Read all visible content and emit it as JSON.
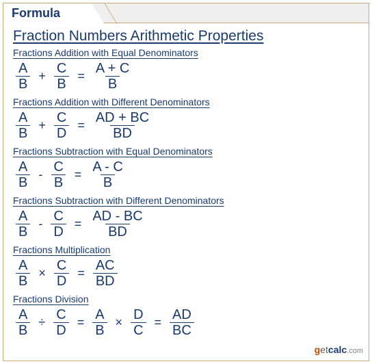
{
  "colors": {
    "border": "#c9a97a",
    "text_primary": "#1a3a6e",
    "tab_bg": "#f0efed",
    "white": "#ffffff"
  },
  "tab_label": "Formula",
  "main_title": "Fraction Numbers Arithmetic Properties",
  "sections": [
    {
      "title": "Fractions Addition with Equal Denominators",
      "f1n": "A",
      "f1d": "B",
      "op1": "+",
      "f2n": "C",
      "f2d": "B",
      "eq1": "=",
      "f3n": "A + C",
      "f3d": "B"
    },
    {
      "title": "Fractions Addition with Different Denominators",
      "f1n": "A",
      "f1d": "B",
      "op1": "+",
      "f2n": "C",
      "f2d": "D",
      "eq1": "=",
      "f3n": "AD + BC",
      "f3d": "BD"
    },
    {
      "title": "Fractions Subtraction with Equal Denominators",
      "f1n": "A",
      "f1d": "B",
      "op1": "-",
      "f2n": "C",
      "f2d": "B",
      "eq1": "=",
      "f3n": "A - C",
      "f3d": "B"
    },
    {
      "title": "Fractions Subtraction with Different Denominators",
      "f1n": "A",
      "f1d": "B",
      "op1": "-",
      "f2n": "C",
      "f2d": "D",
      "eq1": "=",
      "f3n": "AD - BC",
      "f3d": "BD"
    },
    {
      "title": "Fractions Multiplication",
      "f1n": "A",
      "f1d": "B",
      "op1": "×",
      "f2n": "C",
      "f2d": "D",
      "eq1": "=",
      "f3n": "AC",
      "f3d": "BD"
    },
    {
      "title": "Fractions Division",
      "f1n": "A",
      "f1d": "B",
      "op1": "÷",
      "f2n": "C",
      "f2d": "D",
      "eq1": "=",
      "f3n": "A",
      "f3d": "B",
      "op2": "×",
      "f4n": "D",
      "f4d": "C",
      "eq2": "=",
      "f5n": "AD",
      "f5d": "BC"
    }
  ],
  "watermark": {
    "g": "g",
    "et": "et",
    "calc": "calc",
    "com": ".com"
  }
}
